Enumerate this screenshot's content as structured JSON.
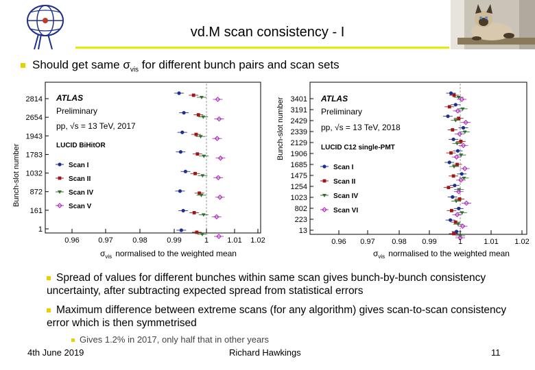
{
  "slide": {
    "title": "vd.M scan consistency - I",
    "main_bullet_prefix": "Should get same ",
    "main_bullet_sym": "σ",
    "main_bullet_sub": "vis",
    "main_bullet_suffix": " for different bunch pairs and scan sets",
    "bullets": [
      "Spread of values for different bunches within same scan gives bunch-by-bunch consistency uncertainty, after subtracting expected spread from statistical errors",
      "Maximum difference between extreme scans (for any algorithm) gives scan-to-scan consistency error which is then symmetrised"
    ],
    "sub_bullet": "Gives 1.2% in 2017, only half that in other years",
    "footer": {
      "date": "4th June 2019",
      "author": "Richard Hawkings",
      "page": "11"
    },
    "colors": {
      "accent": "#e6d000",
      "title_line": "#e8e800"
    },
    "icons": [
      "atlas-logo-icon",
      "cat-photo"
    ]
  },
  "chart_data": [
    {
      "type": "scatter",
      "xlabel_sym": "σ",
      "xlabel_sub": "vis",
      "xlabel_rest": "normalised to the weighted mean",
      "ylabel": "Bunch-slot number",
      "x_ticks": [
        "0.96",
        "0.97",
        "0.98",
        "0.99",
        "1",
        "1.01",
        "1.02"
      ],
      "xlim": [
        0.95,
        1.02
      ],
      "y_ticks": [
        "2814",
        "2654",
        "1943",
        "1783",
        "1032",
        "872",
        "161",
        "1"
      ],
      "annotation": [
        "ATLAS",
        "Preliminary",
        "pp, √s = 13 TeV, 2017",
        "LUCID BiHitOR"
      ],
      "series": [
        {
          "name": "Scan I",
          "color": "#1f2f8f",
          "marker": "circle",
          "x": [
            0.9915,
            0.993,
            0.9925,
            0.992,
            0.9935,
            0.9918,
            0.9928,
            0.9922
          ]
        },
        {
          "name": "Scan II",
          "color": "#a01515",
          "marker": "square",
          "x": [
            0.996,
            0.9975,
            0.9968,
            0.9972,
            0.9965,
            0.9978,
            0.9962,
            0.997
          ]
        },
        {
          "name": "Scan IV",
          "color": "#2f6f2f",
          "marker": "triangle",
          "x": [
            0.9985,
            0.999,
            0.9982,
            0.9992,
            0.9988,
            0.9984,
            0.9991,
            0.9987
          ]
        },
        {
          "name": "Scan V",
          "color": "#b030c0",
          "marker": "open-diamond",
          "x": [
            1.004,
            1.0045,
            1.0038,
            1.005,
            1.0042,
            1.0048,
            1.0036,
            1.0044
          ]
        }
      ]
    },
    {
      "type": "scatter",
      "xlabel_sym": "σ",
      "xlabel_sub": "vis",
      "xlabel_rest": "normalised to the weighted mean",
      "ylabel": "Bunch-slot number",
      "x_ticks": [
        "0.96",
        "0.97",
        "0.98",
        "0.99",
        "1",
        "1.01",
        "1.02"
      ],
      "xlim": [
        0.95,
        1.02
      ],
      "y_ticks": [
        "3401",
        "3191",
        "2429",
        "2339",
        "2129",
        "1906",
        "1685",
        "1475",
        "1254",
        "1023",
        "802",
        "223",
        "13"
      ],
      "annotation": [
        "ATLAS",
        "Preliminary",
        "pp, √s = 13 TeV, 2018",
        "LUCID C12 single-PMT"
      ],
      "series": [
        {
          "name": "Scan I",
          "color": "#1f2f8f",
          "marker": "circle",
          "x": [
            0.997,
            0.9985,
            0.996,
            1.001,
            0.9978,
            0.9992,
            0.9965,
            1.0005,
            0.9982,
            0.9975,
            0.9995,
            0.9968,
            0.9988
          ]
        },
        {
          "name": "Scan II",
          "color": "#a01515",
          "marker": "square",
          "x": [
            0.998,
            0.9965,
            0.9995,
            0.9975,
            1.0002,
            0.997,
            0.999,
            0.9978,
            0.9962,
            0.9998,
            0.9972,
            0.9985,
            0.9979
          ]
        },
        {
          "name": "Scan IV",
          "color": "#2f6f2f",
          "marker": "triangle",
          "x": [
            0.9995,
            1.0008,
            0.9985,
            1.0015,
            0.999,
            1.0003,
            0.998,
            1.0012,
            0.9996,
            0.9987,
            1.0006,
            0.9993,
            1.0
          ]
        },
        {
          "name": "Scan VI",
          "color": "#b030c0",
          "marker": "open-diamond",
          "x": [
            1.0005,
            0.9992,
            1.0018,
            0.9998,
            1.001,
            0.9988,
            1.0015,
            1.0002,
            0.9995,
            1.002,
            0.999,
            1.0008,
            1.0
          ]
        }
      ]
    }
  ]
}
